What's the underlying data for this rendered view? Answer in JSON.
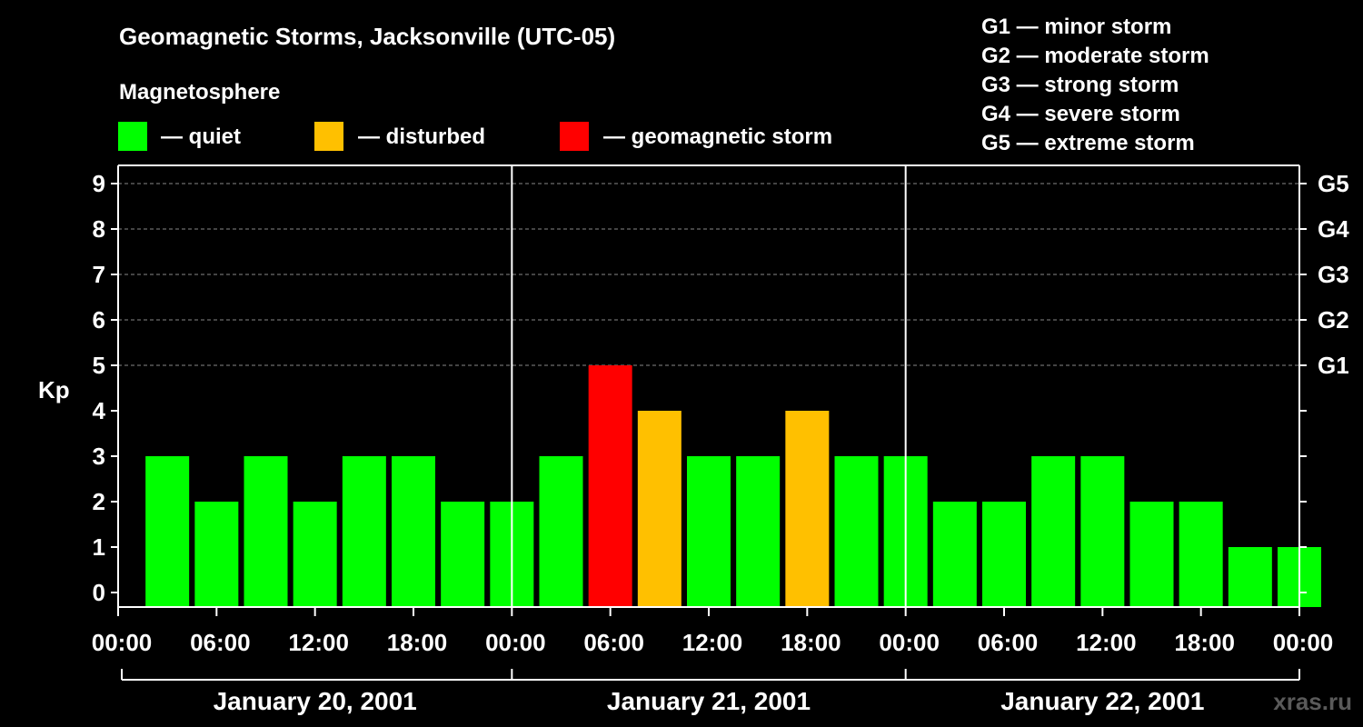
{
  "colors": {
    "background": "#000000",
    "quiet": "#00ff00",
    "disturbed": "#ffc000",
    "storm": "#ff0000",
    "axis": "#ffffff",
    "grid": "#888888"
  },
  "watermark": "xras.ru",
  "chart_data": {
    "type": "bar",
    "title": "Geomagnetic Storms, Jacksonville (UTC-05)",
    "legend_title": "Magnetosphere",
    "legend": [
      {
        "label": "— quiet",
        "color": "#00ff00"
      },
      {
        "label": "— disturbed",
        "color": "#ffc000"
      },
      {
        "label": "— geomagnetic storm",
        "color": "#ff0000"
      }
    ],
    "storm_scale": [
      "G1 — minor storm",
      "G2 — moderate storm",
      "G3 — strong storm",
      "G4 — severe storm",
      "G5 — extreme storm"
    ],
    "ylabel": "Kp",
    "ylim": [
      0,
      9
    ],
    "yticks": [
      "0",
      "1",
      "2",
      "3",
      "4",
      "5",
      "6",
      "7",
      "8",
      "9"
    ],
    "right_ticks": [
      {
        "value": 5,
        "label": "G1"
      },
      {
        "value": 6,
        "label": "G2"
      },
      {
        "value": 7,
        "label": "G3"
      },
      {
        "value": 8,
        "label": "G4"
      },
      {
        "value": 9,
        "label": "G5"
      }
    ],
    "xticks": [
      "00:00",
      "06:00",
      "12:00",
      "18:00",
      "00:00",
      "06:00",
      "12:00",
      "18:00",
      "00:00",
      "06:00",
      "12:00",
      "18:00",
      "00:00"
    ],
    "days": [
      "January 20, 2001",
      "January 21, 2001",
      "January 22, 2001"
    ],
    "hours_per_bar": 3,
    "grid": true,
    "values": [
      3,
      2,
      3,
      2,
      3,
      3,
      2,
      2,
      3,
      5,
      4,
      3,
      3,
      4,
      3,
      3,
      2,
      2,
      3,
      3,
      2,
      2,
      1,
      1
    ],
    "levels": [
      "quiet",
      "quiet",
      "quiet",
      "quiet",
      "quiet",
      "quiet",
      "quiet",
      "quiet",
      "quiet",
      "storm",
      "disturbed",
      "quiet",
      "quiet",
      "disturbed",
      "quiet",
      "quiet",
      "quiet",
      "quiet",
      "quiet",
      "quiet",
      "quiet",
      "quiet",
      "quiet",
      "quiet"
    ]
  }
}
